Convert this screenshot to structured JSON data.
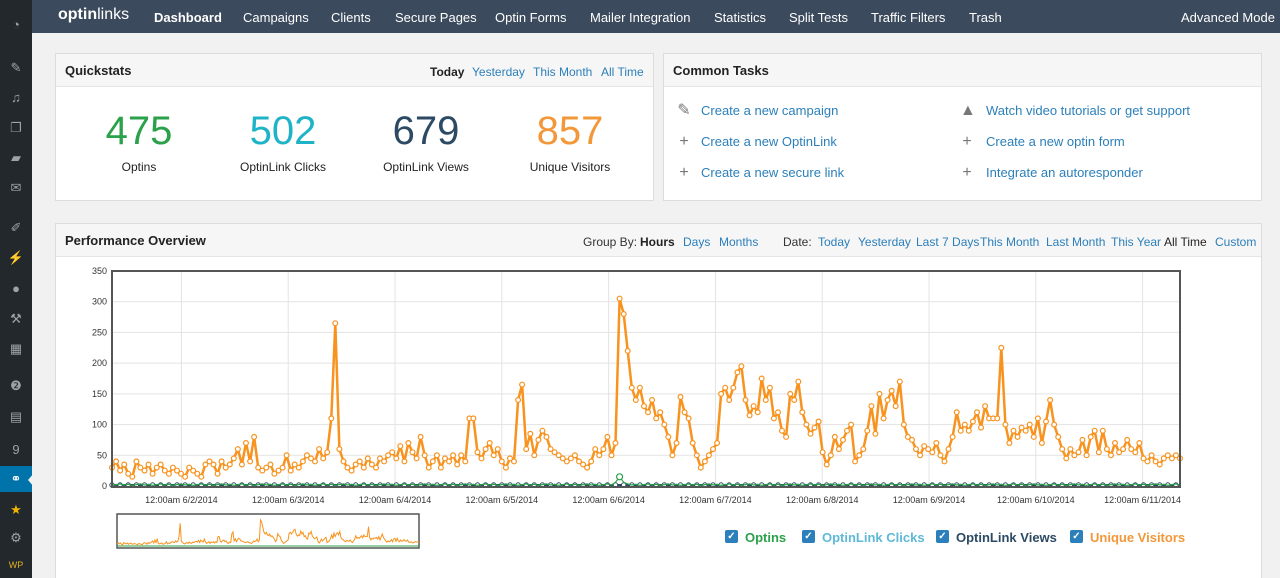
{
  "wp_sidebar": {
    "icons": [
      "dashboard-icon",
      "pin-icon",
      "media-icon",
      "pages-icon",
      "comments-icon",
      "mail-icon",
      "appearance-icon",
      "plugins-icon",
      "users-icon",
      "tools-icon",
      "settings-icon",
      "feedback-icon",
      "docs-icon",
      "badge-icon",
      "optinlinks-icon",
      "star-icon",
      "gear-icon",
      "wpx-icon"
    ],
    "badge_count": "9",
    "wp_label": "WP"
  },
  "topnav": {
    "logo_a": "optin",
    "logo_b": "links",
    "items": [
      "Dashboard",
      "Campaigns",
      "Clients",
      "Secure Pages",
      "Optin Forms",
      "Mailer Integration",
      "Statistics",
      "Split Tests",
      "Traffic Filters",
      "Trash"
    ],
    "active": "Dashboard",
    "right": "Advanced Mode"
  },
  "quickstats": {
    "title": "Quickstats",
    "ranges": [
      "Today",
      "Yesterday",
      "This Month",
      "All Time"
    ],
    "active_range": "Today",
    "stats": [
      {
        "value": "475",
        "label": "Optins",
        "color": "#2aa14a"
      },
      {
        "value": "502",
        "label": "OptinLink Clicks",
        "color": "#1fb3c7"
      },
      {
        "value": "679",
        "label": "OptinLink Views",
        "color": "#2c4a63"
      },
      {
        "value": "857",
        "label": "Unique Visitors",
        "color": "#f3983a"
      }
    ]
  },
  "common_tasks": {
    "title": "Common Tasks",
    "left": [
      {
        "label": "Create a new campaign",
        "icon": "edit-icon"
      },
      {
        "label": "Create a new OptinLink",
        "icon": "plus-icon"
      },
      {
        "label": "Create a new secure link",
        "icon": "plus-icon"
      }
    ],
    "right": [
      {
        "label": "Watch video tutorials or get support",
        "icon": "graduation-cap-icon"
      },
      {
        "label": "Create a new optin form",
        "icon": "plus-icon"
      },
      {
        "label": "Integrate an autoresponder",
        "icon": "plus-icon"
      }
    ]
  },
  "performance": {
    "title": "Performance Overview",
    "group_by_label": "Group By:",
    "group_by": [
      "Hours",
      "Days",
      "Months"
    ],
    "group_active": "Hours",
    "date_label": "Date:",
    "dates": [
      "Today",
      "Yesterday",
      "Last 7 Days",
      "This Month",
      "Last Month",
      "This Year",
      "All Time",
      "Custom"
    ],
    "date_active": "All Time"
  },
  "legend": [
    {
      "label": "Optins",
      "color": "#2aa14a",
      "checked": true
    },
    {
      "label": "OptinLink Clicks",
      "color": "#5fb8d8",
      "checked": true
    },
    {
      "label": "OptinLink Views",
      "color": "#2c4a63",
      "checked": true
    },
    {
      "label": "Unique Visitors",
      "color": "#f3983a",
      "checked": true
    }
  ],
  "chart_data": {
    "type": "line",
    "ylim": [
      0,
      350
    ],
    "yticks": [
      0,
      50,
      100,
      150,
      200,
      250,
      300,
      350
    ],
    "xlabels": [
      "12:00am 6/2/2014",
      "12:00am 6/3/2014",
      "12:00am 6/4/2014",
      "12:00am 6/5/2014",
      "12:00am 6/6/2014",
      "12:00am 6/7/2014",
      "12:00am 6/8/2014",
      "12:00am 6/9/2014",
      "12:00am 6/10/2014",
      "12:00am 6/11/2014"
    ],
    "grid": true,
    "series": [
      {
        "name": "Unique Visitors",
        "color": "#f7931e",
        "values": [
          30,
          40,
          25,
          35,
          20,
          15,
          40,
          30,
          25,
          35,
          20,
          30,
          35,
          25,
          20,
          30,
          25,
          20,
          15,
          30,
          25,
          20,
          15,
          35,
          40,
          35,
          20,
          40,
          30,
          35,
          45,
          60,
          35,
          70,
          40,
          80,
          30,
          25,
          30,
          35,
          20,
          25,
          30,
          50,
          25,
          35,
          30,
          40,
          50,
          45,
          40,
          60,
          45,
          55,
          110,
          265,
          60,
          40,
          30,
          25,
          35,
          40,
          30,
          45,
          35,
          30,
          45,
          40,
          50,
          55,
          45,
          65,
          40,
          70,
          55,
          45,
          80,
          50,
          30,
          40,
          50,
          30,
          45,
          40,
          50,
          35,
          50,
          40,
          110,
          110,
          55,
          45,
          60,
          70,
          50,
          60,
          40,
          30,
          45,
          40,
          140,
          165,
          60,
          85,
          50,
          75,
          90,
          80,
          60,
          55,
          50,
          45,
          40,
          45,
          50,
          40,
          35,
          30,
          40,
          60,
          50,
          60,
          80,
          50,
          70,
          305,
          280,
          220,
          160,
          140,
          160,
          130,
          120,
          140,
          110,
          120,
          100,
          80,
          50,
          70,
          145,
          120,
          110,
          70,
          50,
          30,
          40,
          50,
          60,
          70,
          150,
          160,
          140,
          160,
          185,
          195,
          140,
          115,
          130,
          120,
          175,
          140,
          160,
          110,
          120,
          90,
          80,
          150,
          140,
          170,
          120,
          100,
          85,
          95,
          105,
          55,
          35,
          50,
          80,
          60,
          75,
          90,
          100,
          40,
          50,
          60,
          90,
          130,
          85,
          150,
          110,
          140,
          155,
          130,
          170,
          100,
          80,
          75,
          60,
          50,
          65,
          60,
          55,
          70,
          50,
          40,
          60,
          80,
          120,
          90,
          100,
          90,
          105,
          120,
          95,
          130,
          110,
          110,
          110,
          225,
          100,
          70,
          90,
          80,
          95,
          90,
          100,
          80,
          110,
          70,
          105,
          140,
          100,
          80,
          60,
          45,
          60,
          50,
          55,
          75,
          50,
          80,
          90,
          55,
          90,
          60,
          50,
          70,
          55,
          60,
          75,
          60,
          55,
          70,
          45,
          40,
          50,
          40,
          35,
          45,
          50,
          45,
          50,
          45
        ]
      },
      {
        "name": "Optins",
        "color": "#2aa14a",
        "summary": "near 0 across range, peaks about 15 around 6/6/2014"
      },
      {
        "name": "OptinLink Clicks",
        "color": "#5fb8d8",
        "summary": "near 0 across range"
      },
      {
        "name": "OptinLink Views",
        "color": "#2c4a63",
        "summary": "near 0 across range"
      }
    ]
  }
}
